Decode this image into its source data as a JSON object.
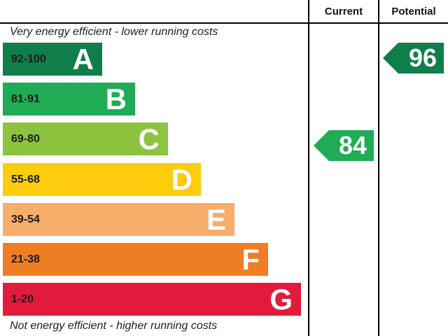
{
  "chart_data": {
    "type": "table",
    "headers": {
      "current": "Current",
      "potential": "Potential"
    },
    "top_note": "Very energy efficient - lower running costs",
    "bottom_note": "Not energy efficient - higher running costs",
    "bands": [
      {
        "letter": "A",
        "range": "92-100",
        "color": "#0f7e4a"
      },
      {
        "letter": "B",
        "range": "81-91",
        "color": "#1fac54"
      },
      {
        "letter": "C",
        "range": "69-80",
        "color": "#8cc43f"
      },
      {
        "letter": "D",
        "range": "55-68",
        "color": "#fdcc0c"
      },
      {
        "letter": "E",
        "range": "39-54",
        "color": "#f7ae6b"
      },
      {
        "letter": "F",
        "range": "21-38",
        "color": "#ef7d24"
      },
      {
        "letter": "G",
        "range": "1-20",
        "color": "#e21b3c"
      }
    ],
    "current": {
      "value": 84,
      "band": "B"
    },
    "potential": {
      "value": 96,
      "band": "A"
    }
  }
}
